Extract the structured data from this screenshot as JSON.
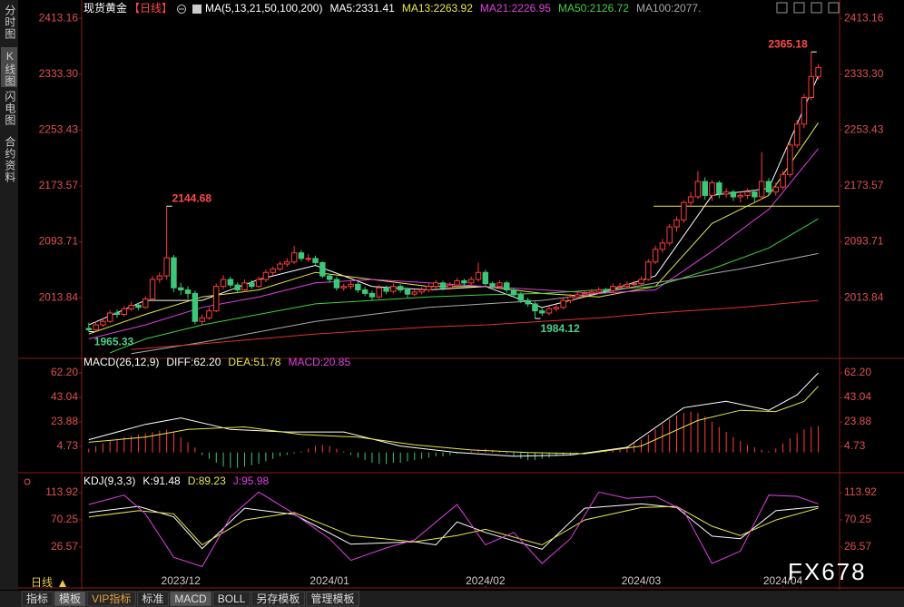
{
  "ui": {
    "sidebar": [
      "分时图",
      "K线图",
      "闪电图",
      "合约资料"
    ],
    "period": "日线",
    "toolbar": [
      "指标",
      "模板",
      "VIP指标",
      "标准",
      "MACD",
      "BOLL",
      "另存模板",
      "管理模板"
    ],
    "watermark": "FX678"
  },
  "chart_data": [
    {
      "type": "candlestick",
      "title": "现货黄金",
      "subtitle": "【日线】",
      "indicator": "MA(5,13,21,50,100,200)",
      "up_color": "#ff3c3c",
      "down_color": "#3cc878",
      "xlim": [
        -1,
        106
      ],
      "ylim": [
        1931,
        2429
      ],
      "yticks": [
        2413.16,
        {
          "value": 2333.3,
          "label": "2333.30"
        },
        2253.43,
        2173.57,
        2093.71,
        2013.84
      ],
      "ohlc": [
        [
          1970,
          1978,
          1965.33,
          1968
        ],
        [
          1968,
          1980,
          1966,
          1975
        ],
        [
          1975,
          1985,
          1972,
          1980
        ],
        [
          1980,
          1996,
          1978,
          1992
        ],
        [
          1992,
          1997,
          1985,
          1990
        ],
        [
          1990,
          2002,
          1987,
          1998
        ],
        [
          1998,
          2008,
          1995,
          2003
        ],
        [
          2003,
          2007,
          1996,
          2000
        ],
        [
          2000,
          2016,
          1998,
          2012
        ],
        [
          2012,
          2045,
          2010,
          2040
        ],
        [
          2040,
          2050,
          2035,
          2045
        ],
        [
          2045,
          2144.68,
          2040,
          2071
        ],
        [
          2071,
          2075,
          2022,
          2028
        ],
        [
          2028,
          2035,
          2018,
          2025
        ],
        [
          2025,
          2030,
          2012,
          2020
        ],
        [
          2020,
          2024,
          1976,
          1980
        ],
        [
          1980,
          1990,
          1975,
          1985
        ],
        [
          1985,
          2000,
          1982,
          1995
        ],
        [
          1995,
          2034,
          1993,
          2030
        ],
        [
          2030,
          2046,
          2026,
          2040
        ],
        [
          2040,
          2044,
          2028,
          2032
        ],
        [
          2032,
          2036,
          2020,
          2025
        ],
        [
          2025,
          2040,
          2022,
          2035
        ],
        [
          2035,
          2039,
          2026,
          2030
        ],
        [
          2030,
          2044,
          2028,
          2040
        ],
        [
          2040,
          2054,
          2036,
          2050
        ],
        [
          2050,
          2058,
          2046,
          2055
        ],
        [
          2055,
          2066,
          2052,
          2062
        ],
        [
          2062,
          2070,
          2058,
          2065
        ],
        [
          2065,
          2088,
          2062,
          2078
        ],
        [
          2078,
          2082,
          2066,
          2070
        ],
        [
          2070,
          2076,
          2065,
          2070
        ],
        [
          2070,
          2074,
          2060,
          2064
        ],
        [
          2064,
          2066,
          2042,
          2045
        ],
        [
          2045,
          2048,
          2035,
          2040
        ],
        [
          2040,
          2044,
          2024,
          2028
        ],
        [
          2028,
          2034,
          2024,
          2030
        ],
        [
          2030,
          2038,
          2026,
          2033
        ],
        [
          2033,
          2036,
          2021,
          2025
        ],
        [
          2025,
          2029,
          2016,
          2020
        ],
        [
          2020,
          2024,
          2010,
          2015
        ],
        [
          2015,
          2032,
          2012,
          2028
        ],
        [
          2028,
          2031,
          2019,
          2023
        ],
        [
          2023,
          2034,
          2020,
          2030
        ],
        [
          2030,
          2033,
          2021,
          2025
        ],
        [
          2025,
          2028,
          2014,
          2019
        ],
        [
          2019,
          2026,
          2016,
          2022
        ],
        [
          2022,
          2029,
          2019,
          2025
        ],
        [
          2025,
          2034,
          2022,
          2030
        ],
        [
          2030,
          2039,
          2027,
          2035
        ],
        [
          2035,
          2038,
          2024,
          2028
        ],
        [
          2028,
          2036,
          2025,
          2032
        ],
        [
          2032,
          2042,
          2029,
          2038
        ],
        [
          2038,
          2041,
          2031,
          2035
        ],
        [
          2035,
          2044,
          2032,
          2040
        ],
        [
          2040,
          2064,
          2037,
          2050
        ],
        [
          2050,
          2054,
          2030,
          2034
        ],
        [
          2034,
          2037,
          2026,
          2030
        ],
        [
          2030,
          2039,
          2027,
          2035
        ],
        [
          2035,
          2038,
          2021,
          2025
        ],
        [
          2025,
          2028,
          2014,
          2018
        ],
        [
          2018,
          2022,
          2006,
          2010
        ],
        [
          2010,
          2014,
          2001,
          2005
        ],
        [
          2005,
          2008,
          1984.12,
          1995
        ],
        [
          1995,
          2000,
          1988,
          1992
        ],
        [
          1992,
          2002,
          1989,
          1998
        ],
        [
          1998,
          2004,
          1994,
          2000
        ],
        [
          2000,
          2014,
          1997,
          2010
        ],
        [
          2010,
          2019,
          2006,
          2015
        ],
        [
          2015,
          2022,
          2012,
          2018
        ],
        [
          2018,
          2024,
          2014,
          2020
        ],
        [
          2020,
          2026,
          2017,
          2022
        ],
        [
          2022,
          2029,
          2019,
          2025
        ],
        [
          2025,
          2028,
          2020,
          2024
        ],
        [
          2024,
          2034,
          2021,
          2030
        ],
        [
          2030,
          2035,
          2026,
          2030
        ],
        [
          2030,
          2037,
          2027,
          2033
        ],
        [
          2033,
          2038,
          2029,
          2034
        ],
        [
          2034,
          2044,
          2031,
          2040
        ],
        [
          2040,
          2069,
          2038,
          2065
        ],
        [
          2065,
          2088,
          2062,
          2083
        ],
        [
          2083,
          2098,
          2078,
          2092
        ],
        [
          2092,
          2119,
          2088,
          2115
        ],
        [
          2115,
          2130,
          2108,
          2125
        ],
        [
          2125,
          2153,
          2121,
          2150
        ],
        [
          2150,
          2165,
          2144,
          2158
        ],
        [
          2158,
          2195,
          2155,
          2180
        ],
        [
          2180,
          2186,
          2154,
          2160
        ],
        [
          2160,
          2182,
          2152,
          2178
        ],
        [
          2178,
          2181,
          2156,
          2162
        ],
        [
          2162,
          2170,
          2157,
          2165
        ],
        [
          2165,
          2168,
          2152,
          2158
        ],
        [
          2158,
          2166,
          2150,
          2160
        ],
        [
          2160,
          2170,
          2155,
          2165
        ],
        [
          2165,
          2168,
          2150,
          2158
        ],
        [
          2158,
          2222,
          2154,
          2180
        ],
        [
          2180,
          2185,
          2160,
          2165
        ],
        [
          2165,
          2178,
          2160,
          2172
        ],
        [
          2172,
          2195,
          2168,
          2190
        ],
        [
          2190,
          2238,
          2186,
          2232
        ],
        [
          2232,
          2268,
          2228,
          2262
        ],
        [
          2262,
          2305,
          2256,
          2300
        ],
        [
          2300,
          2365.18,
          2296,
          2330
        ],
        [
          2330,
          2348,
          2325,
          2343
        ]
      ],
      "series": [
        {
          "name": "MA5:2331.41",
          "color": "#ffffff",
          "x": [
            0,
            8,
            16,
            24,
            32,
            40,
            48,
            56,
            64,
            72,
            80,
            88,
            96,
            103
          ],
          "values": [
            1975,
            2010,
            2010,
            2040,
            2060,
            2030,
            2025,
            2030,
            2000,
            2020,
            2045,
            2160,
            2170,
            2331.41
          ]
        },
        {
          "name": "MA13:2263.92",
          "color": "#e8e84a",
          "x": [
            0,
            8,
            16,
            24,
            32,
            40,
            48,
            56,
            64,
            72,
            80,
            88,
            96,
            103
          ],
          "values": [
            1962,
            1990,
            2015,
            2025,
            2050,
            2040,
            2030,
            2030,
            2020,
            2015,
            2030,
            2120,
            2160,
            2263.92
          ]
        },
        {
          "name": "MA21:2226.95",
          "color": "#e040e0",
          "x": [
            0,
            8,
            16,
            24,
            32,
            40,
            48,
            56,
            64,
            72,
            80,
            88,
            96,
            103
          ],
          "values": [
            1955,
            1975,
            2000,
            2015,
            2035,
            2040,
            2035,
            2030,
            2025,
            2020,
            2025,
            2080,
            2140,
            2226.95
          ]
        },
        {
          "name": "MA50:2126.72",
          "color": "#40d040",
          "x": [
            3,
            8,
            16,
            24,
            32,
            40,
            48,
            56,
            64,
            72,
            80,
            88,
            96,
            103
          ],
          "values": [
            1935,
            1955,
            1975,
            1990,
            2005,
            2010,
            2015,
            2018,
            2020,
            2025,
            2030,
            2055,
            2085,
            2126.72
          ]
        },
        {
          "name": "MA100:2077.",
          "color": "#a8a8a8",
          "x": [
            6,
            16,
            24,
            32,
            40,
            48,
            56,
            64,
            72,
            80,
            92,
            103
          ],
          "values": [
            1934,
            1950,
            1965,
            1980,
            1990,
            2000,
            2005,
            2010,
            2020,
            2035,
            2055,
            2077
          ]
        },
        {
          "color": "#e03030",
          "x": [
            6,
            16,
            24,
            32,
            40,
            48,
            56,
            64,
            72,
            80,
            92,
            103
          ],
          "values": [
            1940,
            1948,
            1955,
            1962,
            1967,
            1972,
            1975,
            1980,
            1985,
            1992,
            2000,
            2010
          ]
        }
      ],
      "level": 2144.68,
      "level_color": "#e8e84a",
      "annotations": [
        {
          "x": 11,
          "value": 2144.68,
          "color": "#ff4a4a"
        },
        {
          "x": 102,
          "value": 2365.18,
          "color": "#ff4a4a"
        },
        {
          "x": 0,
          "value": 1965.33,
          "color": "#4ad08a"
        },
        {
          "x": 63,
          "value": 1984.12,
          "color": "#4ad08a"
        }
      ]
    },
    {
      "type": "macd",
      "title": "MACD(26,12,9)",
      "xlim": [
        -1,
        106
      ],
      "ylim": [
        -13,
        70
      ],
      "yticks": [
        {
          "value": 62.2,
          "label": "62.20"
        },
        43.04,
        23.88,
        4.73
      ],
      "series": [
        {
          "name": "DIFF:62.20",
          "color": "#ffffff",
          "x": [
            0,
            8,
            13,
            20,
            28,
            36,
            44,
            52,
            60,
            68,
            76,
            84,
            90,
            96,
            100,
            103
          ],
          "values": [
            10,
            22,
            27,
            18,
            16,
            16,
            5,
            0,
            -3,
            -2,
            4,
            35,
            40,
            33,
            45,
            62.2
          ]
        },
        {
          "name": "DEA:51.78",
          "color": "#e8e84a",
          "x": [
            0,
            8,
            14,
            22,
            30,
            38,
            46,
            54,
            62,
            70,
            78,
            86,
            92,
            97,
            101,
            103
          ],
          "values": [
            8,
            12,
            18,
            20,
            14,
            12,
            6,
            2,
            0,
            -1,
            5,
            25,
            33,
            32,
            40,
            51.78
          ]
        }
      ],
      "histogram": {
        "name": "MACD:20.85",
        "color": "#e040e0",
        "up_color": "#ff3c3c",
        "down_color": "#3cc878",
        "values": [
          3,
          5,
          7,
          9,
          10,
          12,
          13,
          14,
          15,
          16,
          17,
          18,
          16,
          12,
          8,
          4,
          -2,
          -5,
          -8,
          -11,
          -12,
          -12,
          -11,
          -10,
          -9,
          -7,
          -5,
          -3,
          -2,
          -1,
          1,
          3,
          5,
          6,
          5,
          3,
          1,
          -2,
          -4,
          -6,
          -8,
          -9,
          -9,
          -8,
          -8,
          -7,
          -6,
          -5,
          -4,
          -3,
          -3,
          -2,
          -1,
          -1,
          1,
          2,
          3,
          2,
          1,
          -1,
          -3,
          -5,
          -6,
          -6,
          -5,
          -4,
          -3,
          -2,
          -2,
          -1,
          -1,
          -0.5,
          0.5,
          1,
          2,
          3,
          5,
          7,
          10,
          14,
          18,
          22,
          26,
          29,
          31,
          32,
          31,
          28,
          24,
          20,
          16,
          12,
          9,
          6,
          4,
          2,
          1,
          3,
          7,
          11,
          15,
          18,
          20,
          20.85
        ]
      }
    },
    {
      "type": "kdj",
      "title": "KDJ(9,3,3)",
      "xlim": [
        -1,
        106
      ],
      "ylim": [
        -35,
        133
      ],
      "yticks": [
        113.92,
        70.25,
        26.57
      ],
      "xticks": [
        {
          "value": 13,
          "label": "2023/12"
        },
        {
          "value": 34,
          "label": "2024/01"
        },
        {
          "value": 56,
          "label": "2024/02"
        },
        {
          "value": 78,
          "label": "2024/03"
        },
        {
          "value": 98,
          "label": "2024/04"
        }
      ],
      "series": [
        {
          "name": "K:91.48",
          "color": "#ffffff",
          "x": [
            0,
            7,
            12,
            16,
            22,
            29,
            37,
            46,
            49,
            52,
            56,
            64,
            70,
            78,
            83,
            88,
            92,
            97,
            103
          ],
          "values": [
            82,
            92,
            75,
            24,
            89,
            79,
            31,
            35,
            30,
            67,
            50,
            23,
            89,
            96,
            90,
            44,
            40,
            85,
            91.48
          ]
        },
        {
          "name": "D:89.23",
          "color": "#e8e84a",
          "x": [
            0,
            7,
            12,
            16,
            22,
            29,
            37,
            46,
            52,
            56,
            64,
            70,
            78,
            83,
            88,
            92,
            97,
            103
          ],
          "values": [
            75,
            85,
            80,
            30,
            70,
            82,
            45,
            35,
            45,
            55,
            30,
            70,
            90,
            92,
            60,
            45,
            70,
            89.23
          ]
        },
        {
          "name": "J:95.98",
          "color": "#e040e0",
          "x": [
            0,
            5,
            8,
            12,
            16,
            20,
            24,
            29,
            34,
            37,
            42,
            46,
            52,
            56,
            60,
            64,
            68,
            72,
            76,
            80,
            84,
            88,
            92,
            96,
            100,
            103
          ],
          "values": [
            95,
            110,
            80,
            10,
            -5,
            75,
            115,
            80,
            40,
            5,
            25,
            38,
            95,
            30,
            50,
            0,
            40,
            115,
            105,
            108,
            85,
            0,
            20,
            110,
            108,
            95.98
          ]
        }
      ]
    }
  ]
}
